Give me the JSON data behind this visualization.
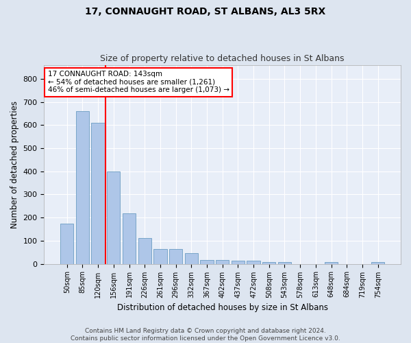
{
  "title": "17, CONNAUGHT ROAD, ST ALBANS, AL3 5RX",
  "subtitle": "Size of property relative to detached houses in St Albans",
  "xlabel": "Distribution of detached houses by size in St Albans",
  "ylabel": "Number of detached properties",
  "bar_labels": [
    "50sqm",
    "85sqm",
    "120sqm",
    "156sqm",
    "191sqm",
    "226sqm",
    "261sqm",
    "296sqm",
    "332sqm",
    "367sqm",
    "402sqm",
    "437sqm",
    "472sqm",
    "508sqm",
    "543sqm",
    "578sqm",
    "613sqm",
    "648sqm",
    "684sqm",
    "719sqm",
    "754sqm"
  ],
  "bar_values": [
    175,
    660,
    610,
    400,
    218,
    110,
    63,
    63,
    45,
    17,
    17,
    15,
    14,
    8,
    8,
    0,
    0,
    8,
    0,
    0,
    8
  ],
  "bar_color": "#aec6e8",
  "bar_edge_color": "#6b9dc2",
  "vline_color": "red",
  "vline_lw": 1.5,
  "vline_x": 2.5,
  "ylim": [
    0,
    860
  ],
  "annotation_text": "17 CONNAUGHT ROAD: 143sqm\n← 54% of detached houses are smaller (1,261)\n46% of semi-detached houses are larger (1,073) →",
  "annotation_box_color": "white",
  "annotation_box_edge": "red",
  "footnote": "Contains HM Land Registry data © Crown copyright and database right 2024.\nContains public sector information licensed under the Open Government Licence v3.0.",
  "bg_color": "#dde5f0",
  "plot_bg_color": "#e8eef8",
  "grid_color": "white",
  "title_fontsize": 10,
  "subtitle_fontsize": 9,
  "tick_fontsize": 7,
  "ylabel_fontsize": 8.5,
  "xlabel_fontsize": 8.5,
  "footnote_fontsize": 6.5,
  "annot_fontsize": 7.5
}
